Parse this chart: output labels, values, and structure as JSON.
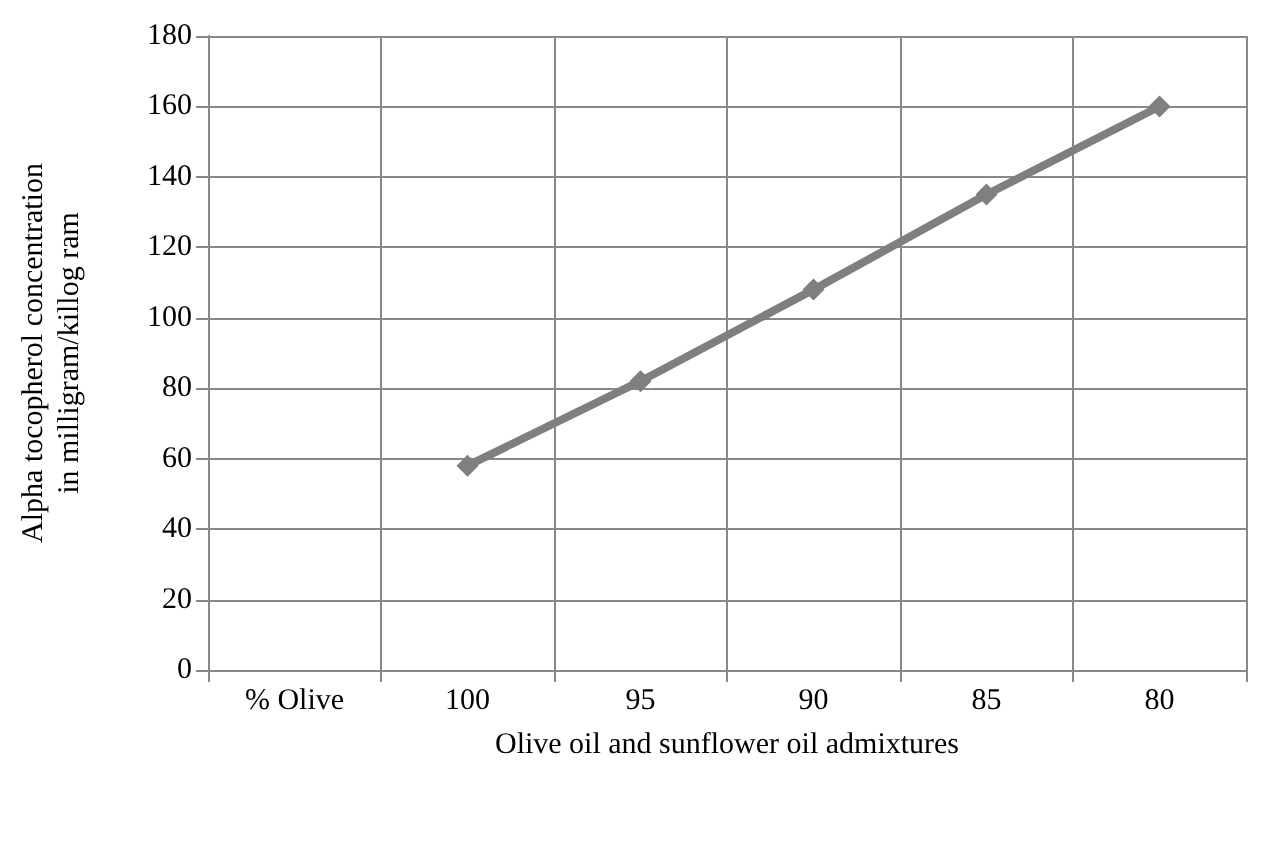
{
  "chart_data": {
    "type": "line",
    "xlabel": "Olive oil and sunflower oil admixtures",
    "ylabel": "Alpha tocopherol concentration\nin milligram/killog ram",
    "categories": [
      "% Olive",
      "100",
      "95",
      "90",
      "85",
      "80"
    ],
    "series": [
      {
        "color": "#7f7f7f",
        "values": [
          null,
          58,
          82,
          108,
          135,
          160
        ]
      }
    ],
    "ylim": [
      0,
      180
    ],
    "yticks": [
      0,
      20,
      40,
      60,
      80,
      100,
      120,
      140,
      160,
      180
    ],
    "grid": true,
    "marker": "diamond",
    "line_style": "solid"
  }
}
